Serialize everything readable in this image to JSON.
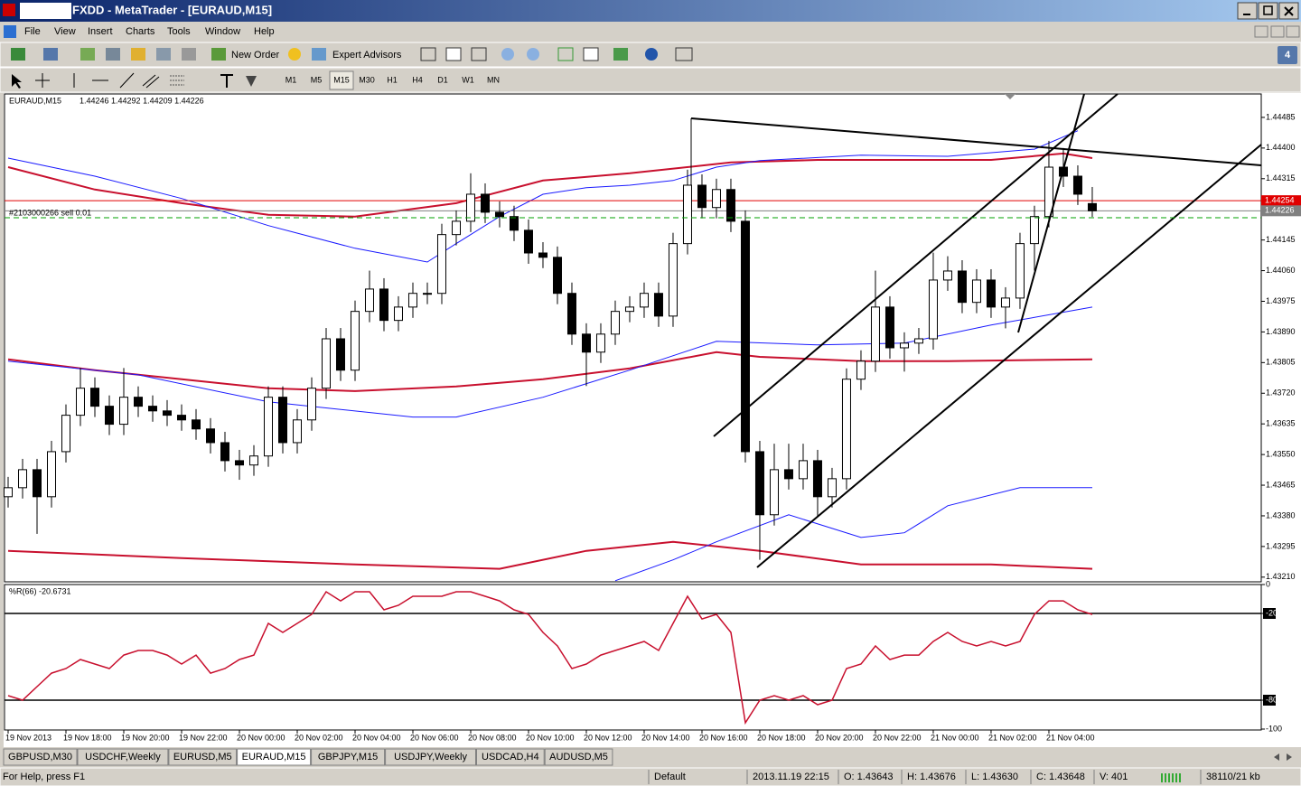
{
  "window": {
    "title": "FXDD - MetaTrader - [EURAUD,M15]",
    "menu": [
      "File",
      "View",
      "Insert",
      "Charts",
      "Tools",
      "Window",
      "Help"
    ],
    "badge": "4"
  },
  "toolbar": {
    "new_order": "New Order",
    "expert_advisors": "Expert Advisors",
    "periods": [
      "M1",
      "M5",
      "M15",
      "M30",
      "H1",
      "H4",
      "D1",
      "W1",
      "MN"
    ],
    "active_period": "M15"
  },
  "chart_data": [
    {
      "type": "candlestick",
      "title": "EURAUD,M15",
      "ohlc_label": "1.44246 1.44292 1.44209 1.44226",
      "open": [
        1.43433,
        1.43458,
        1.43508,
        1.43433,
        1.43558,
        1.43659,
        1.43734,
        1.43684,
        1.43634,
        1.43709,
        1.43684,
        1.43671,
        1.43659,
        1.43646,
        1.43621,
        1.43583,
        1.43533,
        1.43521,
        1.43546,
        1.43709,
        1.43583,
        1.43646,
        1.43734,
        1.43871,
        1.43784,
        1.43947,
        1.44009,
        1.43922,
        1.43959,
        1.43997,
        1.43997,
        1.4416,
        1.44197,
        1.44272,
        1.44222,
        1.4421,
        1.44172,
        1.44109,
        1.44097,
        1.43997,
        1.43884,
        1.43834,
        1.43884,
        1.43947,
        1.43959,
        1.43997,
        1.43934,
        1.44135,
        1.44297,
        1.44235,
        1.44285,
        1.44197,
        1.43558,
        1.43383,
        1.43508,
        1.43483,
        1.43533,
        1.43433,
        1.43483,
        1.43759,
        1.43809,
        1.43959,
        1.43846,
        1.43859,
        1.43871,
        1.44034,
        1.44059,
        1.43972,
        1.44034,
        1.43959,
        1.43984,
        1.44135,
        1.4421,
        1.44347,
        1.44322,
        1.44246
      ],
      "high": [
        1.43488,
        1.43538,
        1.43538,
        1.43588,
        1.43689,
        1.4379,
        1.43764,
        1.43714,
        1.4379,
        1.43739,
        1.43714,
        1.43701,
        1.43689,
        1.43676,
        1.43651,
        1.43613,
        1.43563,
        1.43576,
        1.43739,
        1.43739,
        1.43676,
        1.43764,
        1.43901,
        1.43901,
        1.43977,
        1.4406,
        1.44039,
        1.43989,
        1.44027,
        1.44027,
        1.4419,
        1.44227,
        1.4433,
        1.44302,
        1.44252,
        1.4424,
        1.44202,
        1.44139,
        1.44127,
        1.44027,
        1.43914,
        1.43914,
        1.43977,
        1.43989,
        1.44027,
        1.44027,
        1.44165,
        1.4434,
        1.44327,
        1.44315,
        1.44315,
        1.44227,
        1.43588,
        1.4358,
        1.4358,
        1.4358,
        1.43563,
        1.43513,
        1.43789,
        1.43839,
        1.4406,
        1.43989,
        1.43889,
        1.43901,
        1.4411,
        1.441,
        1.44089,
        1.44064,
        1.44064,
        1.44014,
        1.44165,
        1.4424,
        1.4442,
        1.444,
        1.44352,
        1.44292
      ],
      "low": [
        1.43403,
        1.43428,
        1.4333,
        1.43403,
        1.43528,
        1.43629,
        1.43654,
        1.43604,
        1.43604,
        1.43654,
        1.43641,
        1.43629,
        1.43616,
        1.43591,
        1.43553,
        1.43503,
        1.4348,
        1.43491,
        1.43516,
        1.43553,
        1.43553,
        1.43616,
        1.43704,
        1.43754,
        1.43754,
        1.43917,
        1.43892,
        1.43892,
        1.43929,
        1.43967,
        1.43967,
        1.4413,
        1.44167,
        1.44192,
        1.4418,
        1.44142,
        1.44079,
        1.44067,
        1.43967,
        1.43854,
        1.4374,
        1.43804,
        1.43854,
        1.43917,
        1.43929,
        1.43904,
        1.43904,
        1.44105,
        1.44205,
        1.44205,
        1.44167,
        1.43528,
        1.43258,
        1.43353,
        1.43453,
        1.43453,
        1.4338,
        1.43403,
        1.43453,
        1.43729,
        1.43779,
        1.43816,
        1.4378,
        1.43829,
        1.43841,
        1.44004,
        1.43942,
        1.43942,
        1.43929,
        1.439,
        1.43954,
        1.4406,
        1.4418,
        1.44292,
        1.44242,
        1.44209
      ],
      "close": [
        1.43458,
        1.43508,
        1.43433,
        1.43558,
        1.43659,
        1.43734,
        1.43684,
        1.43634,
        1.43709,
        1.43684,
        1.43671,
        1.43659,
        1.43646,
        1.43621,
        1.43583,
        1.43533,
        1.43521,
        1.43546,
        1.43709,
        1.43583,
        1.43646,
        1.43734,
        1.43871,
        1.43784,
        1.43947,
        1.44009,
        1.43922,
        1.43959,
        1.43997,
        1.43997,
        1.4416,
        1.44197,
        1.44272,
        1.44222,
        1.4421,
        1.44172,
        1.44109,
        1.44097,
        1.43997,
        1.43884,
        1.43834,
        1.43884,
        1.43947,
        1.43959,
        1.43997,
        1.43934,
        1.44135,
        1.44297,
        1.44235,
        1.44285,
        1.44197,
        1.43558,
        1.43383,
        1.43508,
        1.43483,
        1.43533,
        1.43433,
        1.43483,
        1.43759,
        1.43809,
        1.43959,
        1.43846,
        1.43859,
        1.43871,
        1.44034,
        1.44059,
        1.43972,
        1.44034,
        1.43959,
        1.43984,
        1.44135,
        1.4421,
        1.44347,
        1.44322,
        1.44272,
        1.44226
      ],
      "up_color": "#ffffff",
      "down_color": "#000000",
      "wick_color": "#000000",
      "overlays": [
        {
          "color": "#c8102e",
          "x": [
            0,
            6,
            12,
            18,
            24,
            31,
            37,
            43,
            50,
            56,
            62,
            68,
            73,
            75
          ],
          "values": [
            1.44347,
            1.44285,
            1.44247,
            1.44215,
            1.4421,
            1.44247,
            1.4431,
            1.4433,
            1.4436,
            1.44367,
            1.44367,
            1.44367,
            1.44385,
            1.44372
          ]
        },
        {
          "color": "#1a1aff",
          "x": [
            0,
            6,
            12,
            18,
            24,
            29,
            31,
            34,
            37,
            40,
            43,
            46,
            49,
            52,
            59,
            65,
            71,
            74
          ],
          "values": [
            1.44372,
            1.44322,
            1.4426,
            1.44185,
            1.44122,
            1.44084,
            1.44135,
            1.4421,
            1.44272,
            1.4429,
            1.44297,
            1.4431,
            1.44347,
            1.44365,
            1.4438,
            1.44377,
            1.44397,
            1.44448
          ]
        },
        {
          "color": "#c8102e",
          "x": [
            0,
            6,
            12,
            18,
            24,
            31,
            37,
            43,
            49,
            52,
            59,
            65,
            75
          ],
          "values": [
            1.43814,
            1.43784,
            1.43759,
            1.43734,
            1.43726,
            1.43739,
            1.43759,
            1.43789,
            1.43834,
            1.43821,
            1.43809,
            1.43809,
            1.43814
          ]
        },
        {
          "color": "#1a1aff",
          "x": [
            0,
            9,
            18,
            28,
            31,
            37,
            43,
            49,
            56,
            62,
            68,
            75
          ],
          "values": [
            1.43809,
            1.43771,
            1.43696,
            1.43654,
            1.43654,
            1.43709,
            1.43784,
            1.43864,
            1.43854,
            1.43859,
            1.43909,
            1.43959
          ]
        },
        {
          "color": "#c8102e",
          "x": [
            0,
            12,
            24,
            34,
            40,
            46,
            52,
            59,
            68,
            75
          ],
          "values": [
            1.43283,
            1.43263,
            1.43245,
            1.43233,
            1.43283,
            1.43308,
            1.43283,
            1.43245,
            1.43245,
            1.43233
          ]
        },
        {
          "color": "#1a1aff",
          "x": [
            42,
            46,
            49,
            54,
            59,
            62,
            65,
            70,
            75
          ],
          "values": [
            1.432,
            1.43258,
            1.43308,
            1.43383,
            1.4332,
            1.43333,
            1.43408,
            1.43458,
            1.43458
          ]
        }
      ],
      "price_lines": [
        {
          "value": 1.44254,
          "color": "#e00000"
        },
        {
          "value": 1.44226,
          "color": "#808080"
        }
      ],
      "order_label": "#2103000266 sell 0.01",
      "xlim": [
        -0.25,
        86.69
      ],
      "xticks": [
        {
          "value": 0,
          "label": "19 Nov 2013"
        },
        {
          "value": 4,
          "label": "19 Nov 18:00"
        },
        {
          "value": 8,
          "label": "19 Nov 20:00"
        },
        {
          "value": 12,
          "label": "19 Nov 22:00"
        },
        {
          "value": 16,
          "label": "20 Nov 00:00"
        },
        {
          "value": 20,
          "label": "20 Nov 02:00"
        },
        {
          "value": 24,
          "label": "20 Nov 04:00"
        },
        {
          "value": 28,
          "label": "20 Nov 06:00"
        },
        {
          "value": 32,
          "label": "20 Nov 08:00"
        },
        {
          "value": 36,
          "label": "20 Nov 10:00"
        },
        {
          "value": 40,
          "label": "20 Nov 12:00"
        },
        {
          "value": 44,
          "label": "20 Nov 14:00"
        },
        {
          "value": 48,
          "label": "20 Nov 16:00"
        },
        {
          "value": 52,
          "label": "20 Nov 18:00"
        },
        {
          "value": 56,
          "label": "20 Nov 20:00"
        },
        {
          "value": 60,
          "label": "20 Nov 22:00"
        },
        {
          "value": 64,
          "label": "21 Nov 00:00"
        },
        {
          "value": 68,
          "label": "21 Nov 02:00"
        },
        {
          "value": 72,
          "label": "21 Nov 04:00"
        }
      ],
      "ylim": [
        1.43197,
        1.4455
      ],
      "yticks": [
        1.44485,
        {
          "value": 1.444,
          "label": "1.44400"
        },
        1.44315,
        1.44145,
        {
          "value": 1.4406,
          "label": "1.44060"
        },
        1.43975,
        {
          "value": 1.4389,
          "label": "1.43890"
        },
        1.43805,
        {
          "value": 1.4372,
          "label": "1.43720"
        },
        1.43635,
        {
          "value": 1.4355,
          "label": "1.43550"
        },
        1.43465,
        {
          "value": 1.4338,
          "label": "1.43380"
        },
        1.43295,
        {
          "value": 1.4321,
          "label": "1.43210"
        }
      ]
    },
    {
      "type": "line",
      "title": "%R(66) -20.6731",
      "color": "#c8102e",
      "values": [
        -76.9,
        -80,
        -70.6,
        -61.3,
        -58.1,
        -51.9,
        -55,
        -58.1,
        -48.8,
        -45.6,
        -45.6,
        -48.8,
        -55,
        -48.8,
        -61.3,
        -58.1,
        -51.9,
        -48.8,
        -26.9,
        -33.1,
        -26.9,
        -20.6,
        -5,
        -11.3,
        -5,
        -5,
        -17.5,
        -14.4,
        -8.1,
        -8.1,
        -8.1,
        -5,
        -5,
        -8.1,
        -11.3,
        -17.5,
        -20.6,
        -33.1,
        -42.5,
        -58.1,
        -55,
        -48.8,
        -45.6,
        -42.5,
        -39.4,
        -45.6,
        -26.9,
        -8.1,
        -23.8,
        -20.6,
        -33.1,
        -95.6,
        -80,
        -76.9,
        -80,
        -76.9,
        -83.1,
        -80,
        -58.1,
        -55,
        -42.5,
        -51.9,
        -48.8,
        -48.8,
        -39.4,
        -33.1,
        -39.4,
        -42.5,
        -39.4,
        -42.5,
        -39.4,
        -20.6,
        -11.3,
        -11.3,
        -17.5,
        -20.6731
      ],
      "xlim": [
        -0.25,
        86.69
      ],
      "ylim": [
        -100,
        0
      ],
      "yticks": [
        0,
        -20,
        -80,
        -100
      ],
      "levels": [
        -20,
        -80
      ]
    }
  ],
  "tabs": [
    "GBPUSD,M30",
    "USDCHF,Weekly",
    "EURUSD,M5",
    "EURAUD,M15",
    "GBPJPY,M15",
    "USDJPY,Weekly",
    "USDCAD,H4",
    "AUDUSD,M5"
  ],
  "active_tab": "EURAUD,M15",
  "status_bar": {
    "help": "For Help, press F1",
    "profile": "Default",
    "time": "2013.11.19 22:15",
    "open": "O: 1.43643",
    "high": "H: 1.43676",
    "low": "L: 1.43630",
    "close": "C: 1.43648",
    "volume": "V: 401",
    "traffic": "38110/21 kb"
  }
}
